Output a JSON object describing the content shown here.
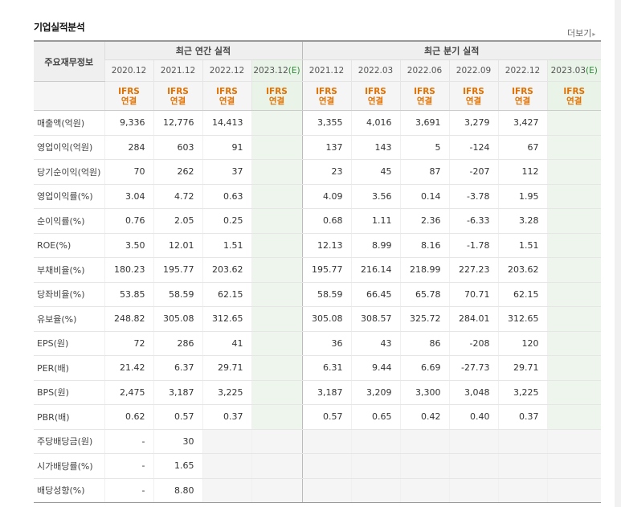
{
  "section": {
    "title": "기업실적분석",
    "more": "더보기"
  },
  "header": {
    "row_label": "주요재무정보",
    "annual_group": "최근 연간 실적",
    "quarter_group": "최근 분기 실적",
    "annual_periods": [
      "2020.12",
      "2021.12",
      "2022.12",
      "2023.12"
    ],
    "quarter_periods": [
      "2021.12",
      "2022.03",
      "2022.06",
      "2022.09",
      "2022.12",
      "2023.03"
    ],
    "estimate_mark": "(E)",
    "basis_line1": "IFRS",
    "basis_line2": "연결"
  },
  "rows": [
    {
      "label": "매출액(억원)",
      "annual": [
        "9,336",
        "12,776",
        "14,413",
        ""
      ],
      "quarter": [
        "3,355",
        "4,016",
        "3,691",
        "3,279",
        "3,427",
        ""
      ]
    },
    {
      "label": "영업이익(억원)",
      "annual": [
        "284",
        "603",
        "91",
        ""
      ],
      "quarter": [
        "137",
        "143",
        "5",
        "-124",
        "67",
        ""
      ]
    },
    {
      "label": "당기순이익(억원)",
      "annual": [
        "70",
        "262",
        "37",
        ""
      ],
      "quarter": [
        "23",
        "45",
        "87",
        "-207",
        "112",
        ""
      ]
    },
    {
      "label": "영업이익률(%)",
      "annual": [
        "3.04",
        "4.72",
        "0.63",
        ""
      ],
      "quarter": [
        "4.09",
        "3.56",
        "0.14",
        "-3.78",
        "1.95",
        ""
      ]
    },
    {
      "label": "순이익률(%)",
      "annual": [
        "0.76",
        "2.05",
        "0.25",
        ""
      ],
      "quarter": [
        "0.68",
        "1.11",
        "2.36",
        "-6.33",
        "3.28",
        ""
      ]
    },
    {
      "label": "ROE(%)",
      "annual": [
        "3.50",
        "12.01",
        "1.51",
        ""
      ],
      "quarter": [
        "12.13",
        "8.99",
        "8.16",
        "-1.78",
        "1.51",
        ""
      ]
    },
    {
      "label": "부채비율(%)",
      "annual": [
        "180.23",
        "195.77",
        "203.62",
        ""
      ],
      "quarter": [
        "195.77",
        "216.14",
        "218.99",
        "227.23",
        "203.62",
        ""
      ]
    },
    {
      "label": "당좌비율(%)",
      "annual": [
        "53.85",
        "58.59",
        "62.15",
        ""
      ],
      "quarter": [
        "58.59",
        "66.45",
        "65.78",
        "70.71",
        "62.15",
        ""
      ]
    },
    {
      "label": "유보율(%)",
      "annual": [
        "248.82",
        "305.08",
        "312.65",
        ""
      ],
      "quarter": [
        "305.08",
        "308.57",
        "325.72",
        "284.01",
        "312.65",
        ""
      ]
    },
    {
      "label": "EPS(원)",
      "annual": [
        "72",
        "286",
        "41",
        ""
      ],
      "quarter": [
        "36",
        "43",
        "86",
        "-208",
        "120",
        ""
      ]
    },
    {
      "label": "PER(배)",
      "annual": [
        "21.42",
        "6.37",
        "29.71",
        ""
      ],
      "quarter": [
        "6.31",
        "9.44",
        "6.69",
        "-27.73",
        "29.71",
        ""
      ]
    },
    {
      "label": "BPS(원)",
      "annual": [
        "2,475",
        "3,187",
        "3,225",
        ""
      ],
      "quarter": [
        "3,187",
        "3,209",
        "3,300",
        "3,048",
        "3,225",
        ""
      ]
    },
    {
      "label": "PBR(배)",
      "annual": [
        "0.62",
        "0.57",
        "0.37",
        ""
      ],
      "quarter": [
        "0.57",
        "0.65",
        "0.42",
        "0.40",
        "0.37",
        ""
      ]
    },
    {
      "label": "주당배당금(원)",
      "annual": [
        "-",
        "30",
        "",
        ""
      ],
      "quarter": [
        "",
        "",
        "",
        "",
        "",
        ""
      ]
    },
    {
      "label": "시가배당률(%)",
      "annual": [
        "-",
        "1.65",
        "",
        ""
      ],
      "quarter": [
        "",
        "",
        "",
        "",
        "",
        ""
      ]
    },
    {
      "label": "배당성향(%)",
      "annual": [
        "-",
        "8.80",
        "",
        ""
      ],
      "quarter": [
        "",
        "",
        "",
        "",
        "",
        ""
      ]
    }
  ],
  "colors": {
    "negative": "#e0211f",
    "basis": "#e27100",
    "estimate_mark": "#2e8b3a",
    "estimate_bg": "#eef5ec"
  }
}
